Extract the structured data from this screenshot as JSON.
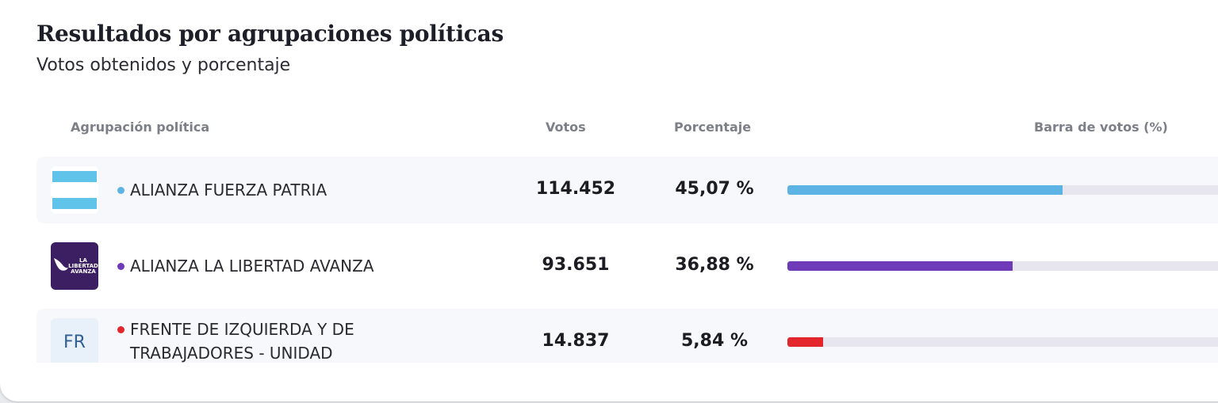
{
  "header": {
    "title": "Resultados por agrupaciones políticas",
    "subtitle": "Votos obtenidos y porcentaje"
  },
  "table": {
    "columns": {
      "name": "Agrupación política",
      "votes": "Votos",
      "percent": "Porcentaje",
      "bar": "Barra de votos (%)"
    },
    "rows": [
      {
        "name": "ALIANZA FUERZA PATRIA",
        "votes": "114.452",
        "percent_label": "45,07 %",
        "percent": 45.07,
        "color": "#5db4e4",
        "logo": "argentina-flag-icon"
      },
      {
        "name": "ALIANZA LA LIBERTAD AVANZA",
        "votes": "93.651",
        "percent_label": "36,88 %",
        "percent": 36.88,
        "color": "#6f3ab8",
        "logo": "la-libertad-avanza-logo",
        "logo_text": "LA LIBERTAD AVANZA"
      },
      {
        "name": "FRENTE DE IZQUIERDA Y DE TRABAJADORES - UNIDAD",
        "votes": "14.837",
        "percent_label": "5,84 %",
        "percent": 5.84,
        "color": "#e3262c",
        "logo": "initials-avatar",
        "logo_text": "FR"
      }
    ]
  }
}
